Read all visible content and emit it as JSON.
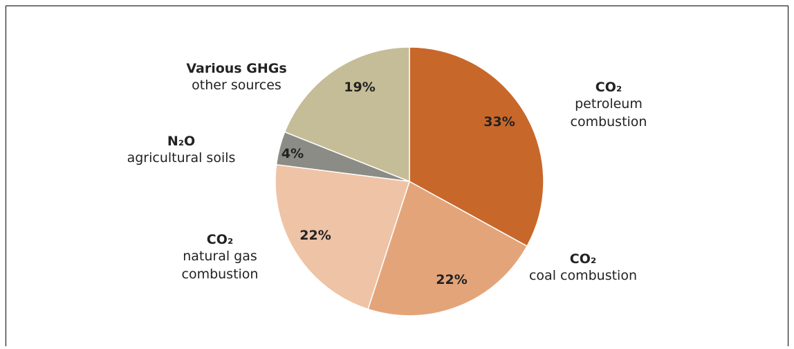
{
  "chart_data": {
    "type": "pie",
    "categories": [
      "CO₂",
      "CO₂",
      "CO₂",
      "N₂O",
      "Various GHGs"
    ],
    "sublabels": [
      [
        "petroleum",
        "combustion"
      ],
      [
        "coal combustion"
      ],
      [
        "natural gas",
        "combustion"
      ],
      [
        "agricultural soils"
      ],
      [
        "other sources"
      ]
    ],
    "values": [
      33,
      22,
      22,
      4,
      19
    ],
    "value_labels": [
      "33%",
      "22%",
      "22%",
      "4%",
      "19%"
    ],
    "colors": [
      "#c8672a",
      "#e4a47a",
      "#eec3a6",
      "#8c8c86",
      "#c5bd98"
    ]
  }
}
